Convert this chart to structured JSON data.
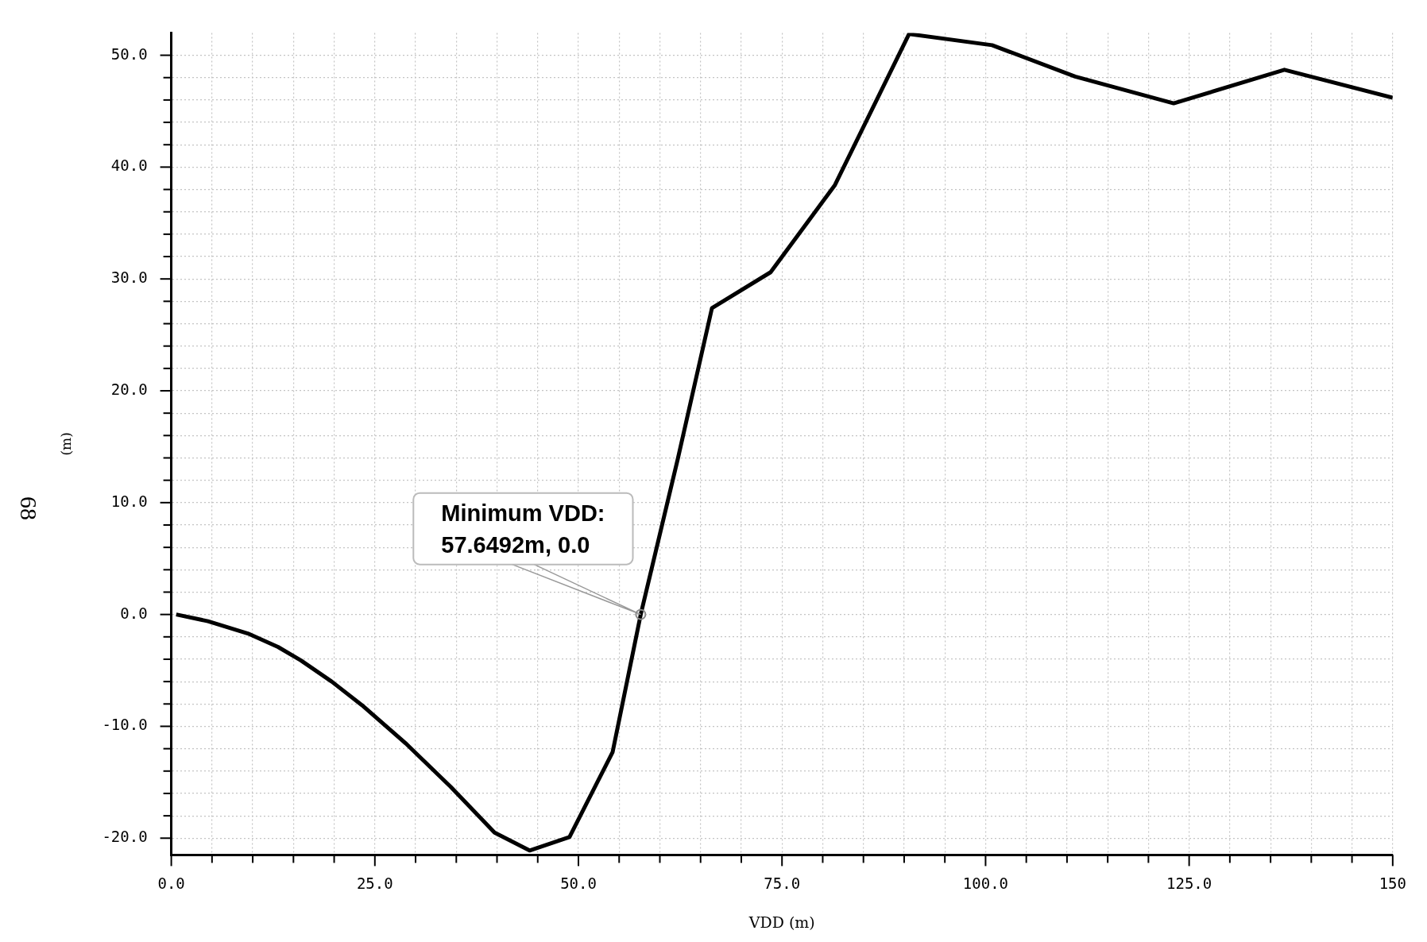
{
  "chart_data": {
    "type": "line",
    "xlabel": "VDD (m)",
    "ylabel": "(m)",
    "annotations": [
      {
        "text": "Minimum VDD:\n57.6492m, 0.0",
        "x": 57.6492,
        "y": 0
      },
      "68"
    ],
    "series": [
      {
        "color": "#000000",
        "x": [
          0.6,
          4.5,
          9.4,
          13.1,
          15.9,
          19.7,
          23.4,
          28.9,
          34.3,
          39.7,
          44.0,
          48.9,
          54.2,
          57.6492,
          62.2,
          66.4,
          73.6,
          81.5,
          90.6,
          100.8,
          111.0,
          123.1,
          136.7,
          150
        ],
        "values": [
          0,
          -0.6,
          -1.7,
          -2.9,
          -4.1,
          -6.0,
          -8.1,
          -11.6,
          -15.4,
          -19.5,
          -21.1,
          -19.9,
          -12.3,
          0,
          13.9,
          27.4,
          30.6,
          38.4,
          51.9,
          50.9,
          48.1,
          45.7,
          48.7,
          46.2
        ]
      }
    ],
    "xlim": [
      0,
      150
    ],
    "xticks": [
      {
        "value": 0,
        "label": "0.0"
      },
      {
        "value": 5,
        "label": null
      },
      {
        "value": 10,
        "label": null
      },
      {
        "value": 15,
        "label": null
      },
      {
        "value": 20,
        "label": null
      },
      {
        "value": 25,
        "label": "25.0"
      },
      {
        "value": 30,
        "label": null
      },
      {
        "value": 35,
        "label": null
      },
      {
        "value": 40,
        "label": null
      },
      {
        "value": 45,
        "label": null
      },
      {
        "value": 50,
        "label": "50.0"
      },
      {
        "value": 55,
        "label": null
      },
      {
        "value": 60,
        "label": null
      },
      {
        "value": 65,
        "label": null
      },
      {
        "value": 70,
        "label": null
      },
      {
        "value": 75,
        "label": "75.0"
      },
      {
        "value": 80,
        "label": null
      },
      {
        "value": 85,
        "label": null
      },
      {
        "value": 90,
        "label": null
      },
      {
        "value": 95,
        "label": null
      },
      {
        "value": 100,
        "label": "100.0"
      },
      {
        "value": 105,
        "label": null
      },
      {
        "value": 110,
        "label": null
      },
      {
        "value": 115,
        "label": null
      },
      {
        "value": 120,
        "label": null
      },
      {
        "value": 125,
        "label": "125.0"
      },
      {
        "value": 130,
        "label": null
      },
      {
        "value": 135,
        "label": null
      },
      {
        "value": 140,
        "label": null
      },
      {
        "value": 145,
        "label": null
      },
      {
        "value": 150,
        "label": "150"
      }
    ],
    "ylim": [
      -21.5,
      52
    ],
    "yticks": [
      {
        "value": -20,
        "label": "-20.0"
      },
      {
        "value": -18,
        "label": null
      },
      {
        "value": -16,
        "label": null
      },
      {
        "value": -14,
        "label": null
      },
      {
        "value": -12,
        "label": null
      },
      {
        "value": -10,
        "label": "-10.0"
      },
      {
        "value": -8,
        "label": null
      },
      {
        "value": -6,
        "label": null
      },
      {
        "value": -4,
        "label": null
      },
      {
        "value": -2,
        "label": null
      },
      {
        "value": 0,
        "label": "0.0"
      },
      {
        "value": 2,
        "label": null
      },
      {
        "value": 4,
        "label": null
      },
      {
        "value": 6,
        "label": null
      },
      {
        "value": 8,
        "label": null
      },
      {
        "value": 10,
        "label": "10.0"
      },
      {
        "value": 12,
        "label": null
      },
      {
        "value": 14,
        "label": null
      },
      {
        "value": 16,
        "label": null
      },
      {
        "value": 18,
        "label": null
      },
      {
        "value": 20,
        "label": "20.0"
      },
      {
        "value": 22,
        "label": null
      },
      {
        "value": 24,
        "label": null
      },
      {
        "value": 26,
        "label": null
      },
      {
        "value": 28,
        "label": null
      },
      {
        "value": 30,
        "label": "30.0"
      },
      {
        "value": 32,
        "label": null
      },
      {
        "value": 34,
        "label": null
      },
      {
        "value": 36,
        "label": null
      },
      {
        "value": 38,
        "label": null
      },
      {
        "value": 40,
        "label": "40.0"
      },
      {
        "value": 42,
        "label": null
      },
      {
        "value": 44,
        "label": null
      },
      {
        "value": 46,
        "label": null
      },
      {
        "value": 48,
        "label": null
      },
      {
        "value": 50,
        "label": "50.0"
      }
    ],
    "grid": true,
    "legend": false,
    "marker": "none",
    "line_style": "solid"
  }
}
